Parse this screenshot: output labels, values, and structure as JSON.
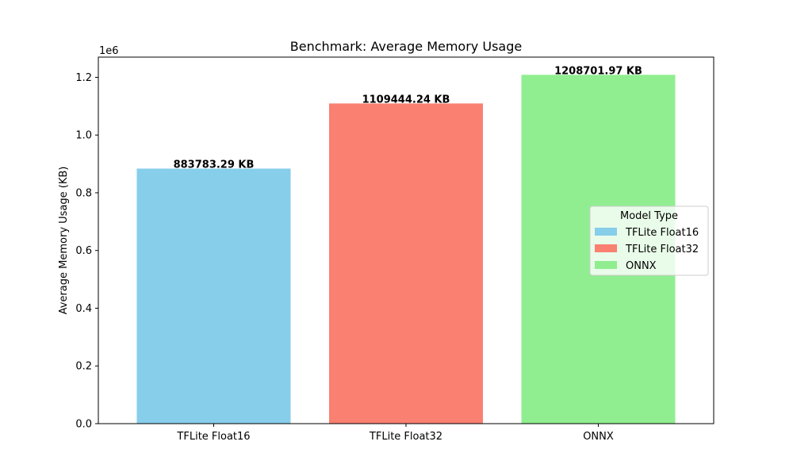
{
  "chart_data": {
    "type": "bar",
    "title": "Benchmark: Average Memory Usage",
    "xlabel": "",
    "ylabel": "Average Memory Usage (KB)",
    "y_offset_label": "1e6",
    "ylim": [
      0,
      1270000
    ],
    "y_ticks": [
      0,
      200000,
      400000,
      600000,
      800000,
      1000000,
      1200000
    ],
    "y_tick_labels": [
      "0.0",
      "0.2",
      "0.4",
      "0.6",
      "0.8",
      "1.0",
      "1.2"
    ],
    "categories": [
      "TFLite Float16",
      "TFLite Float32",
      "ONNX"
    ],
    "values": [
      883783.29,
      1109444.24,
      1208701.97
    ],
    "data_labels": [
      "883783.29 KB",
      "1109444.24 KB",
      "1208701.97 KB"
    ],
    "colors": [
      "#87ceeb",
      "#fa8072",
      "#90ee90"
    ],
    "legend": {
      "title": "Model Type",
      "placement": "center-right",
      "entries": [
        "TFLite Float16",
        "TFLite Float32",
        "ONNX"
      ]
    },
    "grid": false
  }
}
